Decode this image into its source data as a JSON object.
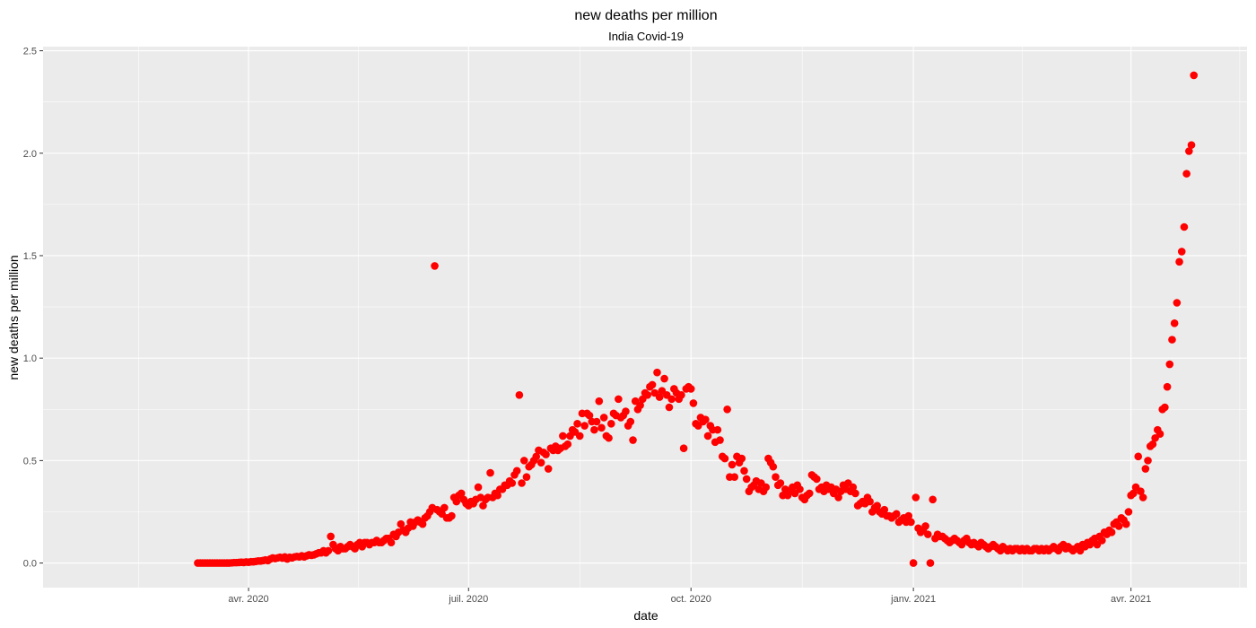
{
  "chart_data": {
    "type": "scatter",
    "title": "new deaths per million",
    "subtitle": "India Covid-19",
    "x_label": "date",
    "y_label": "new deaths per million",
    "color": "#ff0000",
    "grid": true,
    "xlim": [
      "2020-01-07",
      "2021-05-19"
    ],
    "ylim": [
      -0.12,
      2.52
    ],
    "xticks": [
      {
        "value": "2020-04-01",
        "label": "avr. 2020"
      },
      {
        "value": "2020-07-01",
        "label": "juil. 2020"
      },
      {
        "value": "2020-10-01",
        "label": "oct. 2020"
      },
      {
        "value": "2021-01-01",
        "label": "janv. 2021"
      },
      {
        "value": "2021-04-01",
        "label": "avr. 2021"
      }
    ],
    "yticks": [
      {
        "value": 0,
        "label": "0.0"
      },
      0.5,
      {
        "value": 1,
        "label": "1.0"
      },
      1.5,
      {
        "value": 2,
        "label": "2.0"
      },
      2.5
    ],
    "x": [
      "2020-03-11",
      "2020-03-12",
      "2020-03-13",
      "2020-03-14",
      "2020-03-15",
      "2020-03-16",
      "2020-03-17",
      "2020-03-18",
      "2020-03-19",
      "2020-03-20",
      "2020-03-21",
      "2020-03-22",
      "2020-03-23",
      "2020-03-24",
      "2020-03-25",
      "2020-03-26",
      "2020-03-27",
      "2020-03-28",
      "2020-03-29",
      "2020-03-30",
      "2020-03-31",
      "2020-04-01",
      "2020-04-02",
      "2020-04-03",
      "2020-04-04",
      "2020-04-05",
      "2020-04-06",
      "2020-04-07",
      "2020-04-08",
      "2020-04-09",
      "2020-04-10",
      "2020-04-11",
      "2020-04-12",
      "2020-04-13",
      "2020-04-14",
      "2020-04-15",
      "2020-04-16",
      "2020-04-17",
      "2020-04-18",
      "2020-04-19",
      "2020-04-20",
      "2020-04-21",
      "2020-04-22",
      "2020-04-23",
      "2020-04-24",
      "2020-04-25",
      "2020-04-26",
      "2020-04-27",
      "2020-04-28",
      "2020-04-29",
      "2020-04-30",
      "2020-05-01",
      "2020-05-02",
      "2020-05-03",
      "2020-05-04",
      "2020-05-05",
      "2020-05-06",
      "2020-05-07",
      "2020-05-08",
      "2020-05-09",
      "2020-05-10",
      "2020-05-11",
      "2020-05-12",
      "2020-05-13",
      "2020-05-14",
      "2020-05-15",
      "2020-05-16",
      "2020-05-17",
      "2020-05-18",
      "2020-05-19",
      "2020-05-20",
      "2020-05-21",
      "2020-05-22",
      "2020-05-23",
      "2020-05-24",
      "2020-05-25",
      "2020-05-26",
      "2020-05-27",
      "2020-05-28",
      "2020-05-29",
      "2020-05-30",
      "2020-05-31",
      "2020-06-01",
      "2020-06-02",
      "2020-06-03",
      "2020-06-04",
      "2020-06-05",
      "2020-06-06",
      "2020-06-07",
      "2020-06-08",
      "2020-06-09",
      "2020-06-10",
      "2020-06-11",
      "2020-06-12",
      "2020-06-13",
      "2020-06-14",
      "2020-06-15",
      "2020-06-16",
      "2020-06-17",
      "2020-06-18",
      "2020-06-19",
      "2020-06-20",
      "2020-06-21",
      "2020-06-22",
      "2020-06-23",
      "2020-06-24",
      "2020-06-25",
      "2020-06-26",
      "2020-06-27",
      "2020-06-28",
      "2020-06-29",
      "2020-06-30",
      "2020-07-01",
      "2020-07-02",
      "2020-07-03",
      "2020-07-04",
      "2020-07-05",
      "2020-07-06",
      "2020-07-07",
      "2020-07-08",
      "2020-07-09",
      "2020-07-10",
      "2020-07-11",
      "2020-07-12",
      "2020-07-13",
      "2020-07-14",
      "2020-07-15",
      "2020-07-16",
      "2020-07-17",
      "2020-07-18",
      "2020-07-19",
      "2020-07-20",
      "2020-07-21",
      "2020-07-22",
      "2020-07-23",
      "2020-07-24",
      "2020-07-25",
      "2020-07-26",
      "2020-07-27",
      "2020-07-28",
      "2020-07-29",
      "2020-07-30",
      "2020-07-31",
      "2020-08-01",
      "2020-08-02",
      "2020-08-03",
      "2020-08-04",
      "2020-08-05",
      "2020-08-06",
      "2020-08-07",
      "2020-08-08",
      "2020-08-09",
      "2020-08-10",
      "2020-08-11",
      "2020-08-12",
      "2020-08-13",
      "2020-08-14",
      "2020-08-15",
      "2020-08-16",
      "2020-08-17",
      "2020-08-18",
      "2020-08-19",
      "2020-08-20",
      "2020-08-21",
      "2020-08-22",
      "2020-08-23",
      "2020-08-24",
      "2020-08-25",
      "2020-08-26",
      "2020-08-27",
      "2020-08-28",
      "2020-08-29",
      "2020-08-30",
      "2020-08-31",
      "2020-09-01",
      "2020-09-02",
      "2020-09-03",
      "2020-09-04",
      "2020-09-05",
      "2020-09-06",
      "2020-09-07",
      "2020-09-08",
      "2020-09-09",
      "2020-09-10",
      "2020-09-11",
      "2020-09-12",
      "2020-09-13",
      "2020-09-14",
      "2020-09-15",
      "2020-09-16",
      "2020-09-17",
      "2020-09-18",
      "2020-09-19",
      "2020-09-20",
      "2020-09-21",
      "2020-09-22",
      "2020-09-23",
      "2020-09-24",
      "2020-09-25",
      "2020-09-26",
      "2020-09-27",
      "2020-09-28",
      "2020-09-29",
      "2020-09-30",
      "2020-10-01",
      "2020-10-02",
      "2020-10-03",
      "2020-10-04",
      "2020-10-05",
      "2020-10-06",
      "2020-10-07",
      "2020-10-08",
      "2020-10-09",
      "2020-10-10",
      "2020-10-11",
      "2020-10-12",
      "2020-10-13",
      "2020-10-14",
      "2020-10-15",
      "2020-10-16",
      "2020-10-17",
      "2020-10-18",
      "2020-10-19",
      "2020-10-20",
      "2020-10-21",
      "2020-10-22",
      "2020-10-23",
      "2020-10-24",
      "2020-10-25",
      "2020-10-26",
      "2020-10-27",
      "2020-10-28",
      "2020-10-29",
      "2020-10-30",
      "2020-10-31",
      "2020-11-01",
      "2020-11-02",
      "2020-11-03",
      "2020-11-04",
      "2020-11-05",
      "2020-11-06",
      "2020-11-07",
      "2020-11-08",
      "2020-11-09",
      "2020-11-10",
      "2020-11-11",
      "2020-11-12",
      "2020-11-13",
      "2020-11-14",
      "2020-11-15",
      "2020-11-16",
      "2020-11-17",
      "2020-11-18",
      "2020-11-19",
      "2020-11-20",
      "2020-11-21",
      "2020-11-22",
      "2020-11-23",
      "2020-11-24",
      "2020-11-25",
      "2020-11-26",
      "2020-11-27",
      "2020-11-28",
      "2020-11-29",
      "2020-11-30",
      "2020-12-01",
      "2020-12-02",
      "2020-12-03",
      "2020-12-04",
      "2020-12-05",
      "2020-12-06",
      "2020-12-07",
      "2020-12-08",
      "2020-12-09",
      "2020-12-10",
      "2020-12-11",
      "2020-12-12",
      "2020-12-13",
      "2020-12-14",
      "2020-12-15",
      "2020-12-16",
      "2020-12-17",
      "2020-12-18",
      "2020-12-19",
      "2020-12-20",
      "2020-12-21",
      "2020-12-22",
      "2020-12-23",
      "2020-12-24",
      "2020-12-25",
      "2020-12-26",
      "2020-12-27",
      "2020-12-28",
      "2020-12-29",
      "2020-12-30",
      "2020-12-31",
      "2021-01-01",
      "2021-01-02",
      "2021-01-03",
      "2021-01-04",
      "2021-01-05",
      "2021-01-06",
      "2021-01-07",
      "2021-01-08",
      "2021-01-09",
      "2021-01-10",
      "2021-01-11",
      "2021-01-12",
      "2021-01-13",
      "2021-01-14",
      "2021-01-15",
      "2021-01-16",
      "2021-01-17",
      "2021-01-18",
      "2021-01-19",
      "2021-01-20",
      "2021-01-21",
      "2021-01-22",
      "2021-01-23",
      "2021-01-24",
      "2021-01-25",
      "2021-01-26",
      "2021-01-27",
      "2021-01-28",
      "2021-01-29",
      "2021-01-30",
      "2021-01-31",
      "2021-02-01",
      "2021-02-02",
      "2021-02-03",
      "2021-02-04",
      "2021-02-05",
      "2021-02-06",
      "2021-02-07",
      "2021-02-08",
      "2021-02-09",
      "2021-02-10",
      "2021-02-11",
      "2021-02-12",
      "2021-02-13",
      "2021-02-14",
      "2021-02-15",
      "2021-02-16",
      "2021-02-17",
      "2021-02-18",
      "2021-02-19",
      "2021-02-20",
      "2021-02-21",
      "2021-02-22",
      "2021-02-23",
      "2021-02-24",
      "2021-02-25",
      "2021-02-26",
      "2021-02-27",
      "2021-02-28",
      "2021-03-01",
      "2021-03-02",
      "2021-03-03",
      "2021-03-04",
      "2021-03-05",
      "2021-03-06",
      "2021-03-07",
      "2021-03-08",
      "2021-03-09",
      "2021-03-10",
      "2021-03-11",
      "2021-03-12",
      "2021-03-13",
      "2021-03-14",
      "2021-03-15",
      "2021-03-16",
      "2021-03-17",
      "2021-03-18",
      "2021-03-19",
      "2021-03-20",
      "2021-03-21",
      "2021-03-22",
      "2021-03-23",
      "2021-03-24",
      "2021-03-25",
      "2021-03-26",
      "2021-03-27",
      "2021-03-28",
      "2021-03-29",
      "2021-03-30",
      "2021-03-31",
      "2021-04-01",
      "2021-04-02",
      "2021-04-03",
      "2021-04-04",
      "2021-04-05",
      "2021-04-06",
      "2021-04-07",
      "2021-04-08",
      "2021-04-09",
      "2021-04-10",
      "2021-04-11",
      "2021-04-12",
      "2021-04-13",
      "2021-04-14",
      "2021-04-15",
      "2021-04-16",
      "2021-04-17",
      "2021-04-18",
      "2021-04-19",
      "2021-04-20",
      "2021-04-21",
      "2021-04-22",
      "2021-04-23",
      "2021-04-24",
      "2021-04-25",
      "2021-04-26",
      "2021-04-27"
    ],
    "values": [
      0,
      0,
      0,
      0,
      0,
      0,
      0,
      0,
      0,
      0,
      0,
      0,
      0,
      0,
      0.001,
      0.002,
      0.002,
      0.003,
      0.004,
      0.003,
      0.005,
      0.004,
      0.006,
      0.006,
      0.008,
      0.01,
      0.01,
      0.012,
      0.015,
      0.012,
      0.02,
      0.025,
      0.022,
      0.025,
      0.028,
      0.024,
      0.03,
      0.02,
      0.028,
      0.025,
      0.03,
      0.032,
      0.03,
      0.035,
      0.03,
      0.035,
      0.04,
      0.038,
      0.04,
      0.045,
      0.05,
      0.05,
      0.06,
      0.05,
      0.06,
      0.13,
      0.09,
      0.07,
      0.06,
      0.08,
      0.07,
      0.07,
      0.08,
      0.09,
      0.08,
      0.07,
      0.09,
      0.1,
      0.08,
      0.1,
      0.1,
      0.09,
      0.1,
      0.1,
      0.11,
      0.1,
      0.1,
      0.11,
      0.12,
      0.12,
      0.1,
      0.14,
      0.13,
      0.15,
      0.19,
      0.16,
      0.15,
      0.17,
      0.2,
      0.18,
      0.2,
      0.21,
      0.2,
      0.19,
      0.22,
      0.23,
      0.25,
      0.27,
      1.45,
      0.26,
      0.25,
      0.24,
      0.27,
      0.22,
      0.22,
      0.23,
      0.32,
      0.3,
      0.33,
      0.34,
      0.31,
      0.29,
      0.28,
      0.3,
      0.29,
      0.31,
      0.37,
      0.32,
      0.28,
      0.31,
      0.32,
      0.44,
      0.32,
      0.34,
      0.33,
      0.36,
      0.36,
      0.38,
      0.38,
      0.4,
      0.39,
      0.43,
      0.45,
      0.82,
      0.39,
      0.5,
      0.42,
      0.47,
      0.48,
      0.5,
      0.52,
      0.55,
      0.49,
      0.54,
      0.53,
      0.46,
      0.56,
      0.55,
      0.57,
      0.55,
      0.56,
      0.62,
      0.57,
      0.58,
      0.62,
      0.65,
      0.64,
      0.68,
      0.62,
      0.73,
      0.67,
      0.73,
      0.72,
      0.69,
      0.65,
      0.69,
      0.79,
      0.66,
      0.71,
      0.62,
      0.61,
      0.68,
      0.73,
      0.72,
      0.8,
      0.71,
      0.72,
      0.74,
      0.67,
      0.69,
      0.6,
      0.79,
      0.75,
      0.77,
      0.8,
      0.83,
      0.82,
      0.86,
      0.87,
      0.83,
      0.93,
      0.81,
      0.84,
      0.9,
      0.82,
      0.76,
      0.8,
      0.85,
      0.83,
      0.8,
      0.82,
      0.56,
      0.85,
      0.86,
      0.85,
      0.78,
      0.68,
      0.67,
      0.71,
      0.69,
      0.7,
      0.62,
      0.67,
      0.65,
      0.59,
      0.65,
      0.6,
      0.52,
      0.51,
      0.75,
      0.42,
      0.48,
      0.42,
      0.52,
      0.49,
      0.51,
      0.45,
      0.41,
      0.35,
      0.37,
      0.38,
      0.4,
      0.36,
      0.39,
      0.35,
      0.37,
      0.51,
      0.49,
      0.47,
      0.42,
      0.38,
      0.39,
      0.33,
      0.36,
      0.33,
      0.35,
      0.37,
      0.34,
      0.38,
      0.36,
      0.32,
      0.31,
      0.33,
      0.34,
      0.43,
      0.42,
      0.41,
      0.36,
      0.37,
      0.35,
      0.38,
      0.36,
      0.37,
      0.34,
      0.36,
      0.32,
      0.35,
      0.38,
      0.36,
      0.39,
      0.35,
      0.37,
      0.34,
      0.28,
      0.29,
      0.3,
      0.29,
      0.32,
      0.3,
      0.25,
      0.27,
      0.28,
      0.25,
      0.24,
      0.26,
      0.23,
      0.23,
      0.22,
      0.23,
      0.24,
      0.2,
      0.21,
      0.22,
      0.2,
      0.23,
      0.2,
      0.0,
      0.32,
      0.17,
      0.15,
      0.16,
      0.18,
      0.14,
      0.0,
      0.31,
      0.12,
      0.14,
      0.13,
      0.13,
      0.12,
      0.11,
      0.1,
      0.11,
      0.12,
      0.11,
      0.1,
      0.09,
      0.11,
      0.12,
      0.1,
      0.09,
      0.1,
      0.09,
      0.08,
      0.1,
      0.09,
      0.08,
      0.07,
      0.08,
      0.09,
      0.08,
      0.07,
      0.06,
      0.08,
      0.07,
      0.06,
      0.07,
      0.06,
      0.07,
      0.07,
      0.06,
      0.07,
      0.06,
      0.07,
      0.06,
      0.06,
      0.07,
      0.07,
      0.06,
      0.07,
      0.06,
      0.07,
      0.06,
      0.07,
      0.08,
      0.07,
      0.06,
      0.08,
      0.09,
      0.07,
      0.08,
      0.07,
      0.06,
      0.07,
      0.08,
      0.06,
      0.09,
      0.08,
      0.1,
      0.09,
      0.11,
      0.12,
      0.09,
      0.13,
      0.11,
      0.15,
      0.14,
      0.16,
      0.15,
      0.19,
      0.2,
      0.18,
      0.22,
      0.21,
      0.19,
      0.25,
      0.33,
      0.34,
      0.37,
      0.52,
      0.35,
      0.32,
      0.46,
      0.5,
      0.57,
      0.58,
      0.61,
      0.65,
      0.63,
      0.75,
      0.76,
      0.86,
      0.97,
      1.09,
      1.17,
      1.27,
      1.47,
      1.52,
      1.64,
      1.9,
      2.01,
      2.04,
      2.38
    ]
  }
}
